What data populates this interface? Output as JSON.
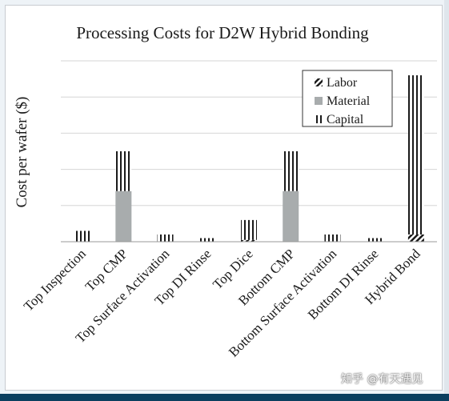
{
  "chart_data": {
    "type": "bar",
    "stacked": true,
    "title": "Processing Costs for D2W Hybrid Bonding",
    "xlabel": "",
    "ylabel": "Cost per wafer ($)",
    "ylim": [
      0,
      10
    ],
    "y_tick_labels_shown": false,
    "grid": "horizontal",
    "legend_position": "top-right",
    "categories": [
      "Top Inspection",
      "Top CMP",
      "Top Surface Activation",
      "Top DI Rinse",
      "Top Dice",
      "Bottom CMP",
      "Bottom Surface Activation",
      "Bottom DI Rinse",
      "Hybrid Bond"
    ],
    "series": [
      {
        "name": "Labor",
        "values": [
          0.0,
          0.0,
          0.0,
          0.0,
          0.1,
          0.0,
          0.0,
          0.0,
          0.4
        ],
        "color": "#222222",
        "pattern": "diagonal-hatch"
      },
      {
        "name": "Material",
        "values": [
          0.0,
          2.8,
          0.0,
          0.0,
          0.0,
          2.8,
          0.0,
          0.0,
          0.0
        ],
        "color": "#a8acad",
        "pattern": "solid"
      },
      {
        "name": "Capital",
        "values": [
          0.6,
          2.2,
          0.4,
          0.2,
          1.1,
          2.2,
          0.4,
          0.2,
          8.8
        ],
        "color": "#222222",
        "pattern": "vertical-stripes"
      }
    ]
  },
  "watermark": "知乎 @有天遇见"
}
